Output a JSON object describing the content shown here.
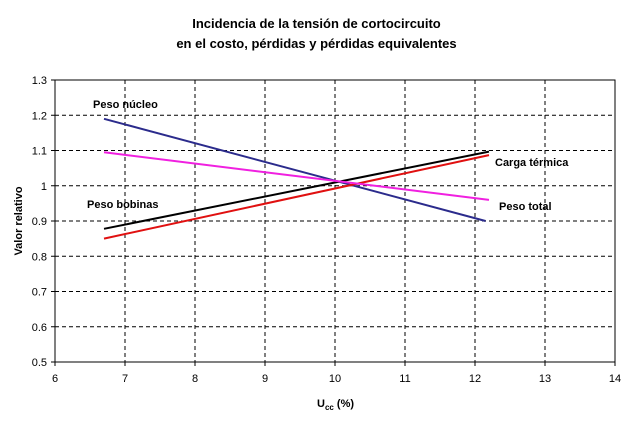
{
  "chart_data": {
    "type": "line",
    "title_lines": [
      "Incidencia de la tensión de cortocircuito",
      "en el costo, pérdidas y pérdidas equivalentes"
    ],
    "xlabel_main": "U",
    "xlabel_sub": "cc",
    "xlabel_unit": " (%)",
    "ylabel": "Valor relativo",
    "xlim": [
      6,
      14
    ],
    "ylim": [
      0.5,
      1.3
    ],
    "x_ticks": [
      "6",
      "7",
      "8",
      "9",
      "10",
      "11",
      "12",
      "13",
      "14"
    ],
    "y_ticks": [
      "0.5",
      "0.6",
      "0.7",
      "0.8",
      "0.9",
      "1",
      "1.1",
      "1.2",
      "1.3"
    ],
    "grid": true,
    "legend": "none",
    "series": [
      {
        "name": "Peso núcleo",
        "color": "#2b2b8c",
        "x": [
          6.7,
          12.15
        ],
        "y": [
          1.19,
          0.9
        ]
      },
      {
        "name": "Carga térmica",
        "color": "#000000",
        "x": [
          6.7,
          12.2
        ],
        "y": [
          0.878,
          1.097
        ]
      },
      {
        "name": "Peso bobinas",
        "color": "#e01010",
        "x": [
          6.7,
          12.2
        ],
        "y": [
          0.85,
          1.087
        ]
      },
      {
        "name": "Peso total",
        "color": "#f020e0",
        "x": [
          6.7,
          12.2
        ],
        "y": [
          1.095,
          0.96
        ]
      }
    ]
  }
}
